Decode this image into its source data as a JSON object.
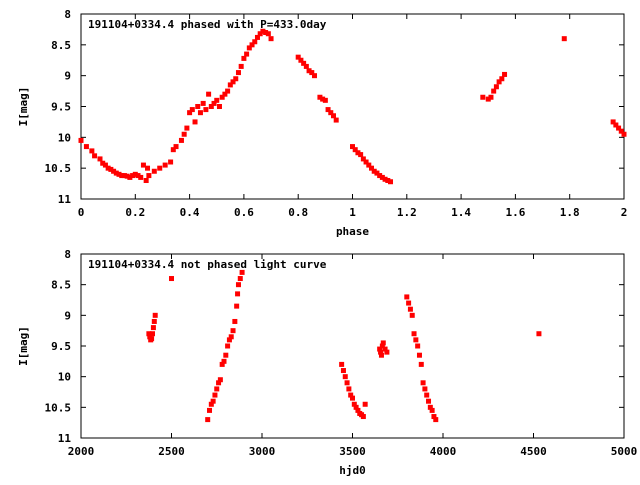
{
  "chart_data": [
    {
      "type": "scatter",
      "title": "191104+0334.4 phased with P=433.0day",
      "xlabel": "phase",
      "ylabel": "I[mag]",
      "xlim": [
        0,
        2
      ],
      "ylim": [
        8,
        11
      ],
      "y_inverted": true,
      "grid": false,
      "xticks": [
        0,
        0.2,
        0.4,
        0.6,
        0.8,
        1,
        1.2,
        1.4,
        1.6,
        1.8,
        2
      ],
      "xtick_labels": [
        "0",
        "0.2",
        "0.4",
        "0.6",
        "0.8",
        "1",
        "1.2",
        "1.4",
        "1.6",
        "1.8",
        "2"
      ],
      "yticks": [
        8,
        8.5,
        9,
        9.5,
        10,
        10.5,
        11
      ],
      "ytick_labels": [
        "8",
        "8.5",
        "9",
        "9.5",
        "10",
        "10.5",
        "11"
      ],
      "marker_color": "#ff0000",
      "series": [
        {
          "x": [
            0.0,
            0.02,
            0.04,
            0.05,
            0.07,
            0.08,
            0.09,
            0.1,
            0.11,
            0.12,
            0.13,
            0.14,
            0.15,
            0.16,
            0.17,
            0.18,
            0.19,
            0.2,
            0.21,
            0.22,
            0.23,
            0.24,
            0.245,
            0.25,
            0.27,
            0.29,
            0.31,
            0.33,
            0.34,
            0.35,
            0.37,
            0.38,
            0.39,
            0.4,
            0.41,
            0.42,
            0.43,
            0.44,
            0.45,
            0.46,
            0.47,
            0.48,
            0.49,
            0.5,
            0.51,
            0.52,
            0.53,
            0.54,
            0.55,
            0.56,
            0.57,
            0.58,
            0.59,
            0.6,
            0.61,
            0.62,
            0.63,
            0.64,
            0.65,
            0.66,
            0.67,
            0.68,
            0.69,
            0.7,
            0.8,
            0.81,
            0.82,
            0.83,
            0.84,
            0.85,
            0.86,
            0.88,
            0.89,
            0.9,
            0.91,
            0.92,
            0.93,
            0.94,
            1.0,
            1.01,
            1.02,
            1.03,
            1.04,
            1.05,
            1.06,
            1.07,
            1.08,
            1.09,
            1.1,
            1.11,
            1.12,
            1.13,
            1.14,
            1.48,
            1.5,
            1.51,
            1.52,
            1.53,
            1.54,
            1.55,
            1.56,
            1.78,
            1.96,
            1.97,
            1.98,
            1.99,
            2.0
          ],
          "y": [
            10.05,
            10.15,
            10.22,
            10.3,
            10.35,
            10.42,
            10.45,
            10.5,
            10.52,
            10.55,
            10.58,
            10.6,
            10.62,
            10.62,
            10.63,
            10.65,
            10.62,
            10.6,
            10.62,
            10.65,
            10.45,
            10.7,
            10.5,
            10.62,
            10.55,
            10.5,
            10.45,
            10.4,
            10.2,
            10.15,
            10.05,
            9.95,
            9.85,
            9.6,
            9.55,
            9.75,
            9.5,
            9.6,
            9.45,
            9.55,
            9.3,
            9.5,
            9.45,
            9.4,
            9.5,
            9.35,
            9.3,
            9.25,
            9.15,
            9.1,
            9.05,
            8.95,
            8.85,
            8.72,
            8.65,
            8.55,
            8.5,
            8.45,
            8.38,
            8.32,
            8.28,
            8.3,
            8.32,
            8.4,
            8.7,
            8.75,
            8.8,
            8.85,
            8.92,
            8.95,
            9.0,
            9.35,
            9.38,
            9.4,
            9.55,
            9.6,
            9.65,
            9.72,
            10.15,
            10.2,
            10.25,
            10.28,
            10.35,
            10.4,
            10.45,
            10.5,
            10.55,
            10.58,
            10.62,
            10.65,
            10.68,
            10.7,
            10.72,
            9.35,
            9.38,
            9.35,
            9.25,
            9.18,
            9.1,
            9.05,
            8.98,
            8.4,
            9.75,
            9.8,
            9.85,
            9.9,
            9.95
          ]
        }
      ]
    },
    {
      "type": "scatter",
      "title": "191104+0334.4 not phased light curve",
      "xlabel": "hjd0",
      "ylabel": "I[mag]",
      "xlim": [
        2000,
        5000
      ],
      "ylim": [
        8,
        11
      ],
      "y_inverted": true,
      "grid": false,
      "xticks": [
        2000,
        2500,
        3000,
        3500,
        4000,
        4500,
        5000
      ],
      "xtick_labels": [
        "2000",
        "2500",
        "3000",
        "3500",
        "4000",
        "4500",
        "5000"
      ],
      "yticks": [
        8,
        8.5,
        9,
        9.5,
        10,
        10.5,
        11
      ],
      "ytick_labels": [
        "8",
        "8.5",
        "9",
        "9.5",
        "10",
        "10.5",
        "11"
      ],
      "marker_color": "#ff0000",
      "series": [
        {
          "x": [
            2375,
            2380,
            2385,
            2390,
            2395,
            2400,
            2405,
            2410,
            2500,
            2700,
            2710,
            2720,
            2730,
            2740,
            2750,
            2760,
            2770,
            2780,
            2790,
            2800,
            2810,
            2820,
            2830,
            2840,
            2850,
            2860,
            2865,
            2870,
            2880,
            2890,
            3440,
            3450,
            3460,
            3470,
            3480,
            3490,
            3500,
            3510,
            3520,
            3530,
            3540,
            3550,
            3560,
            3570,
            3650,
            3655,
            3660,
            3665,
            3670,
            3680,
            3690,
            3800,
            3810,
            3820,
            3830,
            3840,
            3850,
            3860,
            3870,
            3880,
            3890,
            3900,
            3910,
            3920,
            3930,
            3940,
            3950,
            3960,
            4530
          ],
          "y": [
            9.3,
            9.35,
            9.4,
            9.38,
            9.3,
            9.2,
            9.1,
            9.0,
            8.4,
            10.7,
            10.55,
            10.45,
            10.4,
            10.3,
            10.2,
            10.1,
            10.05,
            9.8,
            9.75,
            9.65,
            9.5,
            9.4,
            9.35,
            9.25,
            9.1,
            8.85,
            8.65,
            8.5,
            8.4,
            8.3,
            9.8,
            9.9,
            10.0,
            10.1,
            10.2,
            10.3,
            10.35,
            10.45,
            10.5,
            10.55,
            10.6,
            10.62,
            10.65,
            10.45,
            9.55,
            9.6,
            9.65,
            9.5,
            9.45,
            9.55,
            9.6,
            8.7,
            8.8,
            8.9,
            9.0,
            9.3,
            9.4,
            9.5,
            9.65,
            9.8,
            10.1,
            10.2,
            10.3,
            10.4,
            10.5,
            10.55,
            10.65,
            10.7,
            9.3
          ]
        }
      ]
    }
  ]
}
